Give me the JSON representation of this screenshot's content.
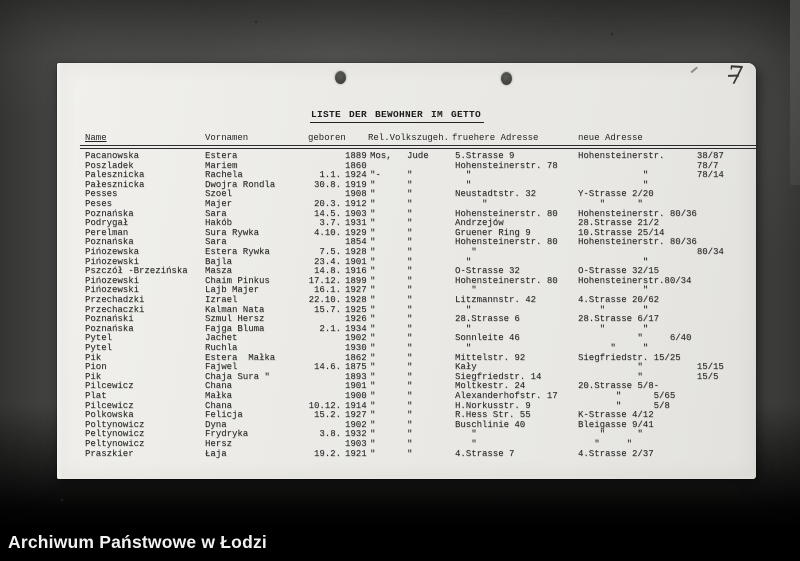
{
  "archive_bar": {
    "label": "Archiwum Państwowe w Łodzi"
  },
  "document": {
    "page_number": "7",
    "title": "LISTE DER BEWOHNER IM GETTO",
    "headers": {
      "name": "Name",
      "vornamen": "Vornamen",
      "geboren": "geboren",
      "rel_volkszugeh": "Rel.Volkszugeh.",
      "fruehere_adresse": "fruehere Adresse",
      "neue_adresse": "neue Adresse"
    },
    "rows": [
      {
        "n": "Pacanowska",
        "v": "Estera",
        "dm": "",
        "y": "1889",
        "rel": "Mos,",
        "volk": "Jude",
        "fa": "5.Strasse 9",
        "na": "Hohensteinerstr.      38/87"
      },
      {
        "n": "Poszladek",
        "v": "Mariem",
        "dm": "",
        "y": "1860",
        "rel": "",
        "volk": "",
        "fa": "Hohensteinerstr. 78",
        "na": "                      78/7"
      },
      {
        "n": "Palesznicka",
        "v": "Rachela",
        "dm": "1.1.",
        "y": "1924",
        "rel": "\"-",
        "volk": "\"",
        "fa": "  \"",
        "na": "            \"         78/14"
      },
      {
        "n": "Pałesznicka",
        "v": "Dwojra Rondla",
        "dm": "30.8.",
        "y": "1919",
        "rel": "\"",
        "volk": "\"",
        "fa": "  \"",
        "na": "            \""
      },
      {
        "n": "Pesses",
        "v": "Szoel",
        "dm": "",
        "y": "1908",
        "rel": "\"",
        "volk": "\"",
        "fa": "Neustadtstr. 32",
        "na": "Y-Strasse 2/20"
      },
      {
        "n": "Peses",
        "v": "Majer",
        "dm": "20.3.",
        "y": "1912",
        "rel": "\"",
        "volk": "\"",
        "fa": "     \"",
        "na": "    \"      \""
      },
      {
        "n": "Poznańska",
        "v": "Sara",
        "dm": "14.5.",
        "y": "1903",
        "rel": "\"",
        "volk": "\"",
        "fa": "Hohensteinerstr. 80",
        "na": "Hohensteinerstr. 80/36"
      },
      {
        "n": "Podrygał",
        "v": "Hakób",
        "dm": "3.7.",
        "y": "1931",
        "rel": "\"",
        "volk": "\"",
        "fa": "Andrzejów",
        "na": "28.Strasse 21/2"
      },
      {
        "n": "Perelman",
        "v": "Sura Rywka",
        "dm": "4.10.",
        "y": "1929",
        "rel": "\"",
        "volk": "\"",
        "fa": "Gruener Ring 9",
        "na": "10.Strasse 25/14"
      },
      {
        "n": "Poznańska",
        "v": "Sara",
        "dm": "",
        "y": "1854",
        "rel": "\"",
        "volk": "\"",
        "fa": "Hohensteinerstr. 80",
        "na": "Hohensteinerstr. 80/36"
      },
      {
        "n": "Pińozewska",
        "v": "Estera Rywka",
        "dm": "7.5.",
        "y": "1928",
        "rel": "\"",
        "volk": "\"",
        "fa": "   \"",
        "na": "                      80/34"
      },
      {
        "n": "Pińozewski",
        "v": "Bajla",
        "dm": "23.4.",
        "y": "1901",
        "rel": "\"",
        "volk": "\"",
        "fa": "  \"",
        "na": "            \""
      },
      {
        "n": "Pszczół -Brzezińska",
        "v": "Masza",
        "dm": "14.8.",
        "y": "1916",
        "rel": "\"",
        "volk": "\"",
        "fa": "O-Strasse 32",
        "na": "O-Strasse 32/15"
      },
      {
        "n": "Pińozewski",
        "v": "Chaim Pinkus",
        "dm": "17.12.",
        "y": "1899",
        "rel": "\"",
        "volk": "\"",
        "fa": "Hohensteinerstr. 80",
        "na": "Hohensteinerstr.80/34"
      },
      {
        "n": "Pińozewski",
        "v": "Lajb Majer",
        "dm": "16.1.",
        "y": "1927",
        "rel": "\"",
        "volk": "\"",
        "fa": "   \"",
        "na": "            \""
      },
      {
        "n": "Przechadzki",
        "v": "Izrael",
        "dm": "22.10.",
        "y": "1928",
        "rel": "\"",
        "volk": "\"",
        "fa": "Litzmannstr. 42",
        "na": "4.Strasse 20/62"
      },
      {
        "n": "Przechaczki",
        "v": "Kalman Nata",
        "dm": "15.7.",
        "y": "1925",
        "rel": "\"",
        "volk": "\"",
        "fa": "  \"",
        "na": "    \"       \""
      },
      {
        "n": "Poznański",
        "v": "Szmul Hersz",
        "dm": "",
        "y": "1926",
        "rel": "\"",
        "volk": "\"",
        "fa": "28.Strasse 6",
        "na": "28.Strasse 6/17"
      },
      {
        "n": "Poznańska",
        "v": "Fajga Bluma",
        "dm": "2.1.",
        "y": "1934",
        "rel": "\"",
        "volk": "\"",
        "fa": "  \"",
        "na": "    \"       \""
      },
      {
        "n": "Pytel",
        "v": "Jachet",
        "dm": "",
        "y": "1902",
        "rel": "\"",
        "volk": "\"",
        "fa": "Sonnleite 46",
        "na": "           \"     6/40"
      },
      {
        "n": "Pytel",
        "v": "Ruchla",
        "dm": "",
        "y": "1930",
        "rel": "\"",
        "volk": "\"",
        "fa": "  \"",
        "na": "      \"     \""
      },
      {
        "n": "Pik",
        "v": "Estera  Małka",
        "dm": "",
        "y": "1862",
        "rel": "\"",
        "volk": "\"",
        "fa": "Mittelstr. 92",
        "na": "Siegfriedstr. 15/25"
      },
      {
        "n": "Pion",
        "v": "Fajwel",
        "dm": "14.6.",
        "y": "1875",
        "rel": "\"",
        "volk": "\"",
        "fa": "Kały",
        "na": "           \"          15/15"
      },
      {
        "n": "Pik",
        "v": "Chaja Sura \"",
        "dm": "",
        "y": "1893",
        "rel": "\"",
        "volk": "\"",
        "fa": "Siegfriedstr. 14",
        "na": "           \"          15/5"
      },
      {
        "n": "Pilcewicz",
        "v": "Chana",
        "dm": "",
        "y": "1901",
        "rel": "\"",
        "volk": "\"",
        "fa": "Moltkestr. 24",
        "na": "20.Strasse 5/8-"
      },
      {
        "n": "Plat",
        "v": "Małka",
        "dm": "",
        "y": "1900",
        "rel": "\"",
        "volk": "\"",
        "fa": "Alexanderhofstr. 17",
        "na": "       \"      5/65"
      },
      {
        "n": "Pilcewicz",
        "v": "Chana",
        "dm": "10.12.",
        "y": "1914",
        "rel": "\"",
        "volk": "\"",
        "fa": "H.Norkusstr. 9",
        "na": "       \"      5/8"
      },
      {
        "n": "Polkowska",
        "v": "Felicja",
        "dm": "15.2.",
        "y": "1927",
        "rel": "\"",
        "volk": "\"",
        "fa": "R.Hess Str. 55",
        "na": "K-Strasse 4/12"
      },
      {
        "n": "Poltynowicz",
        "v": "Dyna",
        "dm": "",
        "y": "1902",
        "rel": "\"",
        "volk": "\"",
        "fa": "Buschlinie 40",
        "na": "Bleigasse 9/41"
      },
      {
        "n": "Peltynowicz",
        "v": "Frydryka",
        "dm": "3.8.",
        "y": "1932",
        "rel": "\"",
        "volk": "\"",
        "fa": "   \"",
        "na": "    \"      \""
      },
      {
        "n": "Peltynowicz",
        "v": "Hersz",
        "dm": "",
        "y": "1903",
        "rel": "\"",
        "volk": "\"",
        "fa": "   \"",
        "na": "   \"     \""
      },
      {
        "n": "Praszkier",
        "v": "Łaja",
        "dm": "19.2.",
        "y": "1921",
        "rel": "\"",
        "volk": "\"",
        "fa": "4.Strasse 7",
        "na": "4.Strasse 2/37"
      }
    ]
  }
}
